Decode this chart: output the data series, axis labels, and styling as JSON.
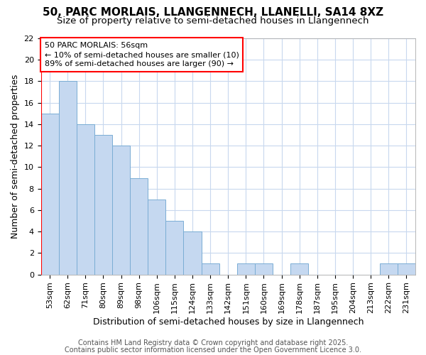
{
  "title": "50, PARC MORLAIS, LLANGENNECH, LLANELLI, SA14 8XZ",
  "subtitle": "Size of property relative to semi-detached houses in Llangennech",
  "xlabel": "Distribution of semi-detached houses by size in Llangennech",
  "ylabel": "Number of semi-detached properties",
  "categories": [
    "53sqm",
    "62sqm",
    "71sqm",
    "80sqm",
    "89sqm",
    "98sqm",
    "106sqm",
    "115sqm",
    "124sqm",
    "133sqm",
    "142sqm",
    "151sqm",
    "160sqm",
    "169sqm",
    "178sqm",
    "187sqm",
    "195sqm",
    "204sqm",
    "213sqm",
    "222sqm",
    "231sqm"
  ],
  "values": [
    15,
    18,
    14,
    13,
    12,
    9,
    7,
    5,
    4,
    1,
    0,
    1,
    1,
    0,
    1,
    0,
    0,
    0,
    0,
    1,
    1
  ],
  "bar_color": "#c5d8f0",
  "bar_edge_color": "#7aadd4",
  "annotation_title": "50 PARC MORLAIS: 56sqm",
  "annotation_line1": "← 10% of semi-detached houses are smaller (10)",
  "annotation_line2": "89% of semi-detached houses are larger (90) →",
  "ylim": [
    0,
    22
  ],
  "yticks": [
    0,
    2,
    4,
    6,
    8,
    10,
    12,
    14,
    16,
    18,
    20,
    22
  ],
  "footer1": "Contains HM Land Registry data © Crown copyright and database right 2025.",
  "footer2": "Contains public sector information licensed under the Open Government Licence 3.0.",
  "background_color": "#ffffff",
  "plot_bg_color": "#ffffff",
  "grid_color": "#c8d8ee",
  "title_fontsize": 11,
  "subtitle_fontsize": 9.5,
  "axis_label_fontsize": 9,
  "tick_fontsize": 8,
  "annot_fontsize": 8,
  "footer_fontsize": 7
}
